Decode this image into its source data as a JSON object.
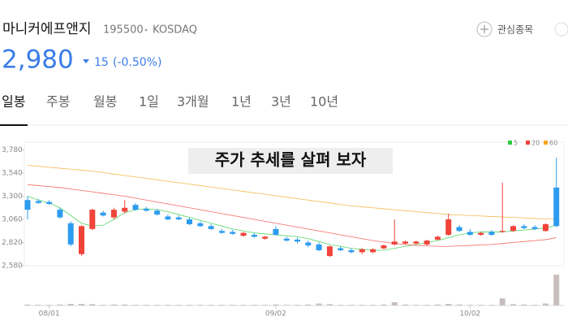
{
  "header": {
    "name": "마니커에프앤지",
    "code": "195500",
    "market": "KOSDAQ",
    "watch": "관심종목",
    "price": "2,980",
    "change": "15",
    "change_pct": "(-0.50%)"
  },
  "tabs": [
    "일봉",
    "주봉",
    "월봉",
    "1일",
    "3개월",
    "1년",
    "3년",
    "10년"
  ],
  "chart_data": {
    "type": "candlestick",
    "annotation": "주가 추세를 살펴 보자",
    "categories": [
      null,
      null,
      "08/01",
      null,
      null,
      null,
      null,
      null,
      null,
      null,
      null,
      null,
      null,
      null,
      null,
      null,
      null,
      null,
      null,
      null,
      null,
      null,
      null,
      "09/02",
      null,
      null,
      null,
      null,
      null,
      null,
      null,
      null,
      null,
      null,
      null,
      null,
      null,
      null,
      null,
      null,
      null,
      "10/02",
      null,
      null,
      null,
      null,
      null,
      null,
      null,
      null
    ],
    "open": [
      3260,
      3250,
      3240,
      3160,
      3020,
      2700,
      2960,
      3130,
      3080,
      3140,
      3210,
      3170,
      3150,
      3090,
      3080,
      3060,
      3020,
      2990,
      2940,
      2930,
      2890,
      2900,
      2860,
      2960,
      2860,
      2850,
      2820,
      2800,
      2680,
      2760,
      2740,
      2720,
      2720,
      2760,
      2800,
      2810,
      2810,
      2800,
      2850,
      2900,
      2980,
      2930,
      2900,
      2930,
      2930,
      2940,
      2990,
      2980,
      2940,
      3390
    ],
    "high": [
      3300,
      3270,
      3260,
      3180,
      3040,
      3000,
      3170,
      3150,
      3180,
      3260,
      3230,
      3190,
      3170,
      3110,
      3100,
      3080,
      3040,
      3010,
      2960,
      2950,
      2930,
      2920,
      2890,
      2990,
      2880,
      2870,
      2840,
      2820,
      2790,
      2780,
      2760,
      2760,
      2760,
      2800,
      3060,
      2840,
      2840,
      2850,
      2890,
      3120,
      3000,
      2960,
      2930,
      2950,
      3440,
      3000,
      3010,
      3000,
      3020,
      3700
    ],
    "low": [
      3060,
      3220,
      3210,
      3070,
      2780,
      2680,
      2950,
      3090,
      3060,
      3120,
      3150,
      3140,
      3100,
      3050,
      3050,
      3000,
      2980,
      2950,
      2910,
      2900,
      2880,
      2870,
      2850,
      2890,
      2830,
      2810,
      2770,
      2730,
      2670,
      2730,
      2710,
      2700,
      2710,
      2750,
      2790,
      2800,
      2800,
      2790,
      2840,
      2890,
      2930,
      2890,
      2890,
      2890,
      2920,
      2930,
      2960,
      2950,
      2930,
      2980
    ],
    "close": [
      3160,
      3230,
      3220,
      3080,
      2800,
      2990,
      3160,
      3100,
      3160,
      3180,
      3160,
      3150,
      3110,
      3060,
      3060,
      3010,
      2990,
      2960,
      2920,
      2910,
      2920,
      2880,
      2880,
      2900,
      2840,
      2830,
      2790,
      2740,
      2780,
      2740,
      2720,
      2750,
      2750,
      2790,
      2830,
      2830,
      2830,
      2840,
      2880,
      3060,
      2940,
      2900,
      2920,
      2900,
      2940,
      2990,
      2970,
      2960,
      3010,
      2990
    ],
    "volume": [
      3,
      2,
      2,
      3,
      5,
      5,
      4,
      2,
      3,
      3,
      2,
      2,
      2,
      2,
      2,
      2,
      2,
      2,
      2,
      2,
      2,
      2,
      2,
      3,
      2,
      2,
      3,
      6,
      4,
      2,
      2,
      2,
      2,
      3,
      10,
      3,
      2,
      2,
      3,
      5,
      3,
      2,
      2,
      2,
      22,
      4,
      3,
      2,
      6,
      95
    ],
    "volume_ylim": [
      0,
      100
    ],
    "up_color": "#f0433a",
    "down_color": "#2d9cf0",
    "volume_color": "#c9bebe",
    "series": [
      {
        "name": "5",
        "color": "#2ecc40",
        "values": [
          3300,
          3260,
          3230,
          3180,
          3100,
          3020,
          2990,
          3000,
          3060,
          3130,
          3160,
          3170,
          3160,
          3140,
          3110,
          3080,
          3050,
          3020,
          2990,
          2960,
          2940,
          2920,
          2910,
          2900,
          2890,
          2880,
          2860,
          2830,
          2800,
          2780,
          2760,
          2750,
          2740,
          2740,
          2760,
          2780,
          2800,
          2820,
          2840,
          2870,
          2900,
          2920,
          2930,
          2930,
          2930,
          2940,
          2950,
          2960,
          2970,
          3000
        ]
      },
      {
        "name": "20",
        "color": "#f0433a",
        "values": [
          3420,
          3410,
          3400,
          3390,
          3375,
          3360,
          3345,
          3330,
          3315,
          3300,
          3280,
          3260,
          3240,
          3220,
          3200,
          3180,
          3160,
          3140,
          3120,
          3100,
          3080,
          3060,
          3040,
          3020,
          3000,
          2980,
          2960,
          2940,
          2920,
          2900,
          2880,
          2860,
          2840,
          2825,
          2810,
          2800,
          2790,
          2785,
          2780,
          2780,
          2785,
          2790,
          2795,
          2800,
          2810,
          2820,
          2830,
          2840,
          2850,
          2870
        ]
      },
      {
        "name": "60",
        "color": "#f5a623",
        "values": [
          3620,
          3610,
          3600,
          3590,
          3580,
          3570,
          3560,
          3545,
          3530,
          3515,
          3500,
          3485,
          3470,
          3455,
          3440,
          3425,
          3410,
          3395,
          3380,
          3365,
          3350,
          3335,
          3320,
          3305,
          3290,
          3275,
          3260,
          3245,
          3230,
          3215,
          3200,
          3190,
          3180,
          3170,
          3160,
          3150,
          3140,
          3130,
          3120,
          3110,
          3105,
          3100,
          3095,
          3090,
          3085,
          3080,
          3075,
          3070,
          3065,
          3060
        ]
      }
    ],
    "ylim": [
      2580,
      3860
    ],
    "yticks": [
      {
        "value": 2580,
        "label": "2,580"
      },
      {
        "value": 2820,
        "label": "2,820"
      },
      {
        "value": 3060,
        "label": "3,060"
      },
      {
        "value": 3300,
        "label": "3,300"
      },
      {
        "value": 3540,
        "label": "3,540"
      },
      {
        "value": 3780,
        "label": "3,780"
      }
    ]
  }
}
